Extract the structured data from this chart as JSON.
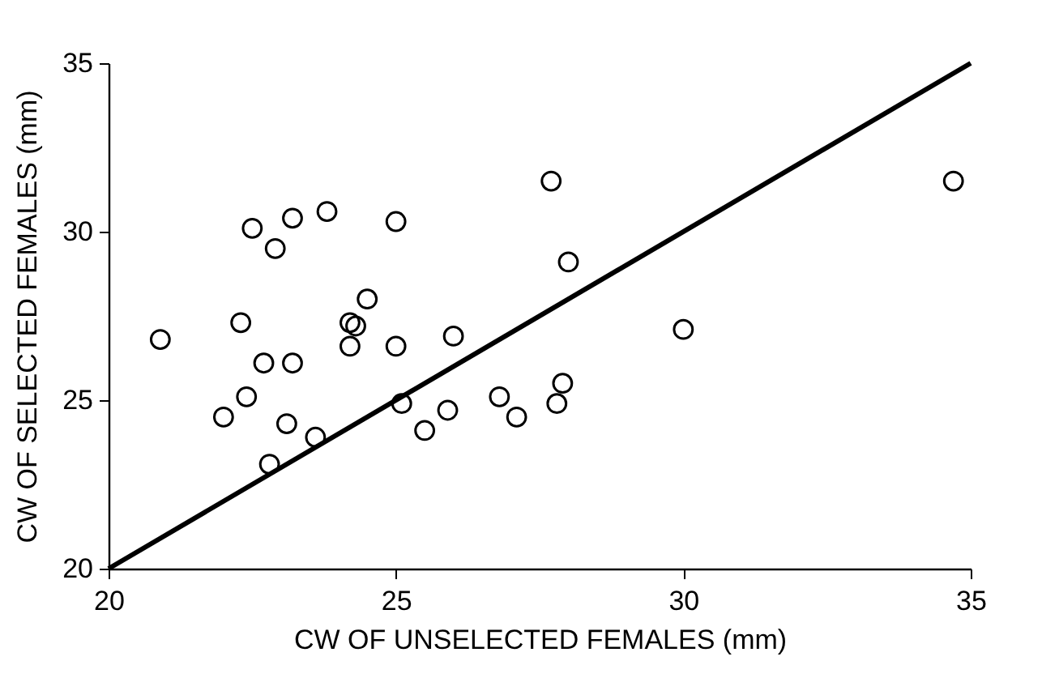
{
  "chart_data": {
    "type": "scatter",
    "xlabel": "CW OF UNSELECTED FEMALES (mm)",
    "ylabel": "CW OF SELECTED FEMALES (mm)",
    "xlim": [
      20,
      35
    ],
    "ylim": [
      20,
      35
    ],
    "xticks": [
      20,
      25,
      30,
      35
    ],
    "yticks": [
      20,
      25,
      30,
      35
    ],
    "grid": false,
    "series": [
      {
        "color": "#000000",
        "marker": "circle",
        "x": [
          20.9,
          22.5,
          23.2,
          23.8,
          22.9,
          25.0,
          24.5,
          22.3,
          24.2,
          24.3,
          24.2,
          25.0,
          22.7,
          23.2,
          22.4,
          22.0,
          23.1,
          23.6,
          22.8,
          25.1,
          25.5,
          25.9,
          26.0,
          26.8,
          27.1,
          27.8,
          27.9,
          28.0,
          27.7,
          30.0,
          34.7
        ],
        "values": [
          26.8,
          30.1,
          30.4,
          30.6,
          29.5,
          30.3,
          28.0,
          27.3,
          27.3,
          27.2,
          26.6,
          26.6,
          26.1,
          26.1,
          25.1,
          24.5,
          24.3,
          23.9,
          23.1,
          24.9,
          24.1,
          24.7,
          26.9,
          25.1,
          24.5,
          24.9,
          25.5,
          29.1,
          31.5,
          27.1,
          31.5
        ]
      },
      {
        "type": "line",
        "color": "#000000",
        "marker": "none",
        "x": [
          20,
          35
        ],
        "values": [
          20,
          35
        ],
        "line_style": "solid"
      }
    ]
  }
}
